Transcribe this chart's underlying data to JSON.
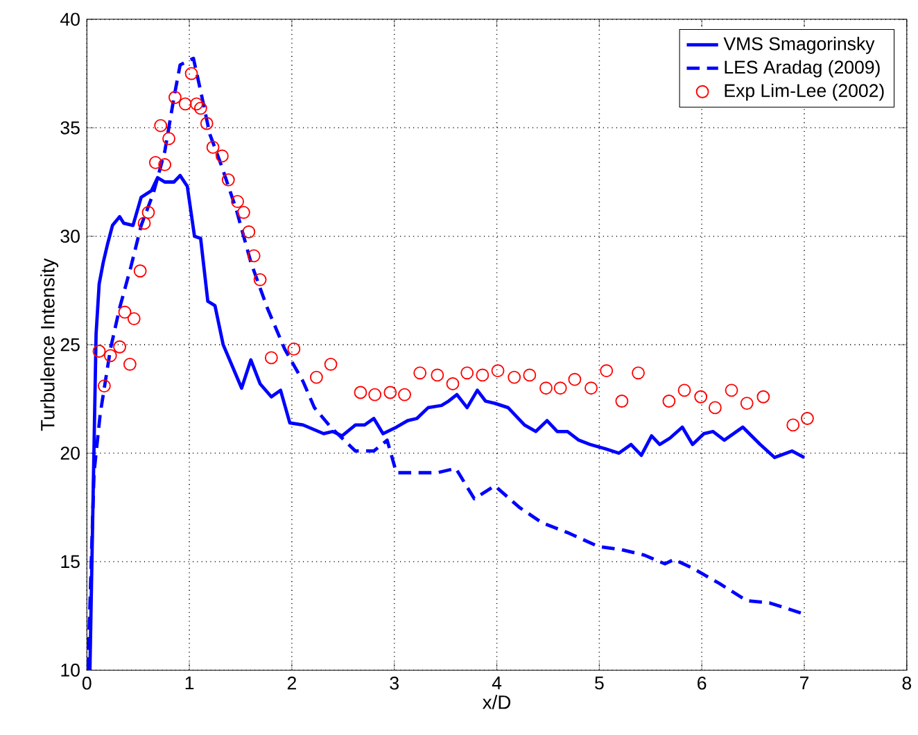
{
  "chart_data": {
    "type": "line",
    "xlabel": "x/D",
    "ylabel": "Turbulence Intensity",
    "xlim": [
      0,
      8
    ],
    "ylim": [
      10,
      40
    ],
    "xticks": [
      0,
      1,
      2,
      3,
      4,
      5,
      6,
      7,
      8
    ],
    "yticks": [
      10,
      15,
      20,
      25,
      30,
      35,
      40
    ],
    "grid": true,
    "legend": "top right",
    "series": [
      {
        "name": "VMS Smagorinsky",
        "color": "#0000ff",
        "line_style": "solid",
        "marker": "none",
        "x": [
          0.03,
          0.09,
          0.12,
          0.16,
          0.2,
          0.25,
          0.32,
          0.36,
          0.45,
          0.53,
          0.63,
          0.69,
          0.76,
          0.85,
          0.91,
          0.98,
          1.05,
          1.11,
          1.18,
          1.25,
          1.33,
          1.51,
          1.6,
          1.69,
          1.8,
          1.89,
          1.98,
          2.11,
          2.31,
          2.4,
          2.49,
          2.62,
          2.71,
          2.8,
          2.89,
          3.02,
          3.13,
          3.22,
          3.33,
          3.46,
          3.53,
          3.61,
          3.71,
          3.81,
          3.89,
          3.98,
          4.11,
          4.27,
          4.38,
          4.49,
          4.59,
          4.69,
          4.8,
          4.91,
          5.06,
          5.19,
          5.31,
          5.41,
          5.51,
          5.59,
          5.69,
          5.81,
          5.91,
          6.02,
          6.11,
          6.22,
          6.4,
          6.57,
          6.71,
          6.88,
          7.0
        ],
        "values": [
          10,
          25.5,
          27.8,
          28.8,
          29.6,
          30.5,
          30.9,
          30.6,
          30.5,
          31.8,
          32.1,
          32.7,
          32.5,
          32.5,
          32.8,
          32.3,
          30.0,
          29.9,
          27.0,
          26.8,
          25.0,
          23.0,
          24.3,
          23.2,
          22.6,
          22.9,
          21.4,
          21.3,
          20.9,
          21.0,
          20.8,
          21.3,
          21.3,
          21.6,
          20.9,
          21.2,
          21.5,
          21.6,
          22.1,
          22.2,
          22.4,
          22.7,
          22.1,
          22.9,
          22.4,
          22.3,
          22.1,
          21.3,
          21.0,
          21.5,
          21.0,
          21.0,
          20.6,
          20.4,
          20.2,
          20.0,
          20.4,
          19.9,
          20.8,
          20.4,
          20.7,
          21.2,
          20.4,
          20.9,
          21.0,
          20.6,
          21.2,
          20.4,
          19.8,
          20.1,
          19.8
        ]
      },
      {
        "name": "LES Aradag (2009)",
        "color": "#0000ff",
        "line_style": "dashed",
        "marker": "none",
        "x": [
          0.01,
          0.07,
          0.13,
          0.23,
          0.32,
          0.43,
          0.53,
          0.65,
          0.76,
          0.85,
          0.91,
          1.04,
          1.11,
          1.2,
          1.31,
          1.46,
          1.6,
          1.76,
          1.93,
          2.11,
          2.22,
          2.38,
          2.62,
          2.8,
          2.93,
          3.02,
          3.2,
          3.42,
          3.6,
          3.78,
          3.98,
          4.22,
          4.44,
          4.71,
          4.99,
          5.22,
          5.44,
          5.64,
          5.73,
          5.91,
          6.17,
          6.44,
          6.66,
          6.99
        ],
        "values": [
          10,
          19.1,
          21.8,
          24.8,
          26.7,
          28.6,
          30.5,
          32.0,
          33.9,
          36.4,
          37.9,
          38.2,
          36.7,
          34.7,
          33.3,
          31.2,
          28.8,
          26.7,
          24.8,
          23.3,
          22.1,
          21.2,
          20.1,
          20.1,
          20.6,
          19.1,
          19.1,
          19.1,
          19.3,
          17.9,
          18.5,
          17.5,
          16.8,
          16.3,
          15.7,
          15.55,
          15.3,
          14.9,
          15.1,
          14.7,
          14.0,
          13.2,
          13.1,
          12.6
        ]
      },
      {
        "name": "Exp Lim-Lee (2002)",
        "color": "#ff0000",
        "type": "scatter",
        "marker": "circle",
        "x": [
          0.12,
          0.17,
          0.23,
          0.32,
          0.37,
          0.42,
          0.46,
          0.52,
          0.56,
          0.6,
          0.67,
          0.76,
          0.72,
          0.8,
          0.86,
          0.96,
          1.02,
          1.07,
          1.11,
          1.17,
          1.23,
          1.32,
          1.38,
          1.47,
          1.53,
          1.58,
          1.63,
          1.69,
          1.8,
          2.02,
          2.24,
          2.38,
          2.67,
          2.81,
          2.96,
          3.1,
          3.25,
          3.42,
          3.57,
          3.71,
          3.86,
          4.01,
          4.17,
          4.32,
          4.48,
          4.62,
          4.76,
          4.92,
          5.07,
          5.22,
          5.38,
          5.68,
          5.83,
          5.99,
          6.13,
          6.29,
          6.44,
          6.6,
          6.89,
          7.03
        ],
        "values": [
          24.7,
          23.1,
          24.5,
          24.9,
          26.5,
          24.1,
          26.2,
          28.4,
          30.6,
          31.1,
          33.4,
          33.3,
          35.1,
          34.5,
          36.4,
          36.1,
          37.5,
          36.1,
          35.9,
          35.2,
          34.1,
          33.7,
          32.6,
          31.6,
          31.1,
          30.2,
          29.1,
          28.0,
          24.4,
          24.8,
          23.5,
          24.1,
          22.8,
          22.7,
          22.8,
          22.7,
          23.7,
          23.6,
          23.2,
          23.7,
          23.6,
          23.8,
          23.5,
          23.6,
          23.0,
          23.0,
          23.4,
          23.0,
          23.8,
          22.4,
          23.7,
          22.4,
          22.9,
          22.6,
          22.1,
          22.9,
          22.3,
          22.6,
          21.3,
          21.6
        ]
      }
    ]
  }
}
